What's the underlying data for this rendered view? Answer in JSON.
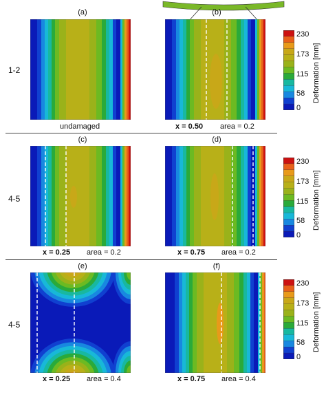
{
  "panels": [
    {
      "id": "a",
      "label": "(a)",
      "caption_x": "",
      "caption_area": "",
      "caption_plain": "undamaged"
    },
    {
      "id": "b",
      "label": "(b)",
      "caption_x": "x = 0.50",
      "caption_area": "area = 0.2",
      "caption_plain": ""
    },
    {
      "id": "c",
      "label": "(c)",
      "caption_x": "x = 0.25",
      "caption_area": "area = 0.2",
      "caption_plain": ""
    },
    {
      "id": "d",
      "label": "(d)",
      "caption_x": "x = 0.75",
      "caption_area": "area = 0.2",
      "caption_plain": ""
    },
    {
      "id": "e",
      "label": "(e)",
      "caption_x": "x = 0.25",
      "caption_area": "area = 0.4",
      "caption_plain": ""
    },
    {
      "id": "f",
      "label": "(f)",
      "caption_x": "x = 0.75",
      "caption_area": "area = 0.4",
      "caption_plain": ""
    }
  ],
  "row_labels": [
    "1-2",
    "4-5",
    "4-5"
  ],
  "colorbar": {
    "title": "Deformation [mm]",
    "ticks": [
      "230",
      "173",
      "115",
      "58",
      "0"
    ],
    "colors": [
      "#cc1111",
      "#e8601a",
      "#e89a1a",
      "#c8a818",
      "#b8b018",
      "#9ab21a",
      "#6cba22",
      "#2aaa3a",
      "#18b8a0",
      "#18b8d8",
      "#1888e0",
      "#1040d0",
      "#0a1ab8"
    ]
  }
}
